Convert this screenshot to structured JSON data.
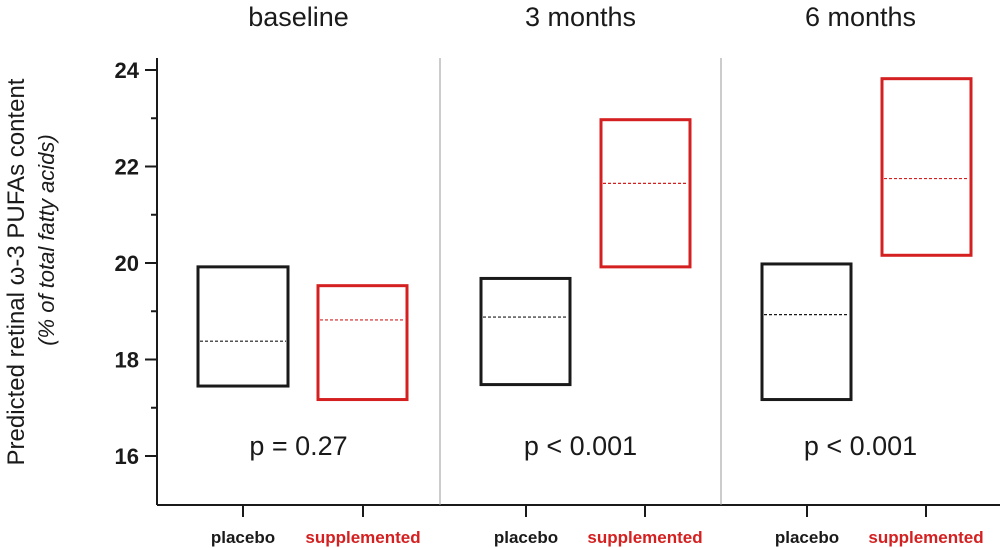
{
  "chart_data": {
    "type": "box",
    "ylabel": "Predicted retinal ω-3 PUFAs content",
    "ylabel_sub": "(% of total fatty acids)",
    "ylim": [
      15,
      24.3
    ],
    "yticks": [
      16,
      18,
      20,
      22,
      24
    ],
    "ytick_labels": [
      "16",
      "18",
      "20",
      "22",
      "24"
    ],
    "minor_ticks": [
      17,
      19,
      21,
      23
    ],
    "groups": [
      {
        "title": "baseline",
        "p_value": "p = 0.27",
        "boxes": [
          {
            "label": "placebo",
            "low": 17.45,
            "high": 19.92,
            "median": 18.38,
            "color": "#1a1a1a"
          },
          {
            "label": "supplemented",
            "low": 17.17,
            "high": 19.53,
            "median": 18.82,
            "color": "#d42020"
          }
        ]
      },
      {
        "title": "3 months",
        "p_value": "p < 0.001",
        "boxes": [
          {
            "label": "placebo",
            "low": 17.48,
            "high": 19.68,
            "median": 18.88,
            "color": "#1a1a1a"
          },
          {
            "label": "supplemented",
            "low": 19.92,
            "high": 22.97,
            "median": 21.65,
            "color": "#d42020"
          }
        ]
      },
      {
        "title": "6 months",
        "p_value": "p < 0.001",
        "boxes": [
          {
            "label": "placebo",
            "low": 17.17,
            "high": 19.98,
            "median": 18.93,
            "color": "#1a1a1a"
          },
          {
            "label": "supplemented",
            "low": 20.16,
            "high": 23.82,
            "median": 21.75,
            "color": "#d42020"
          }
        ]
      }
    ]
  }
}
